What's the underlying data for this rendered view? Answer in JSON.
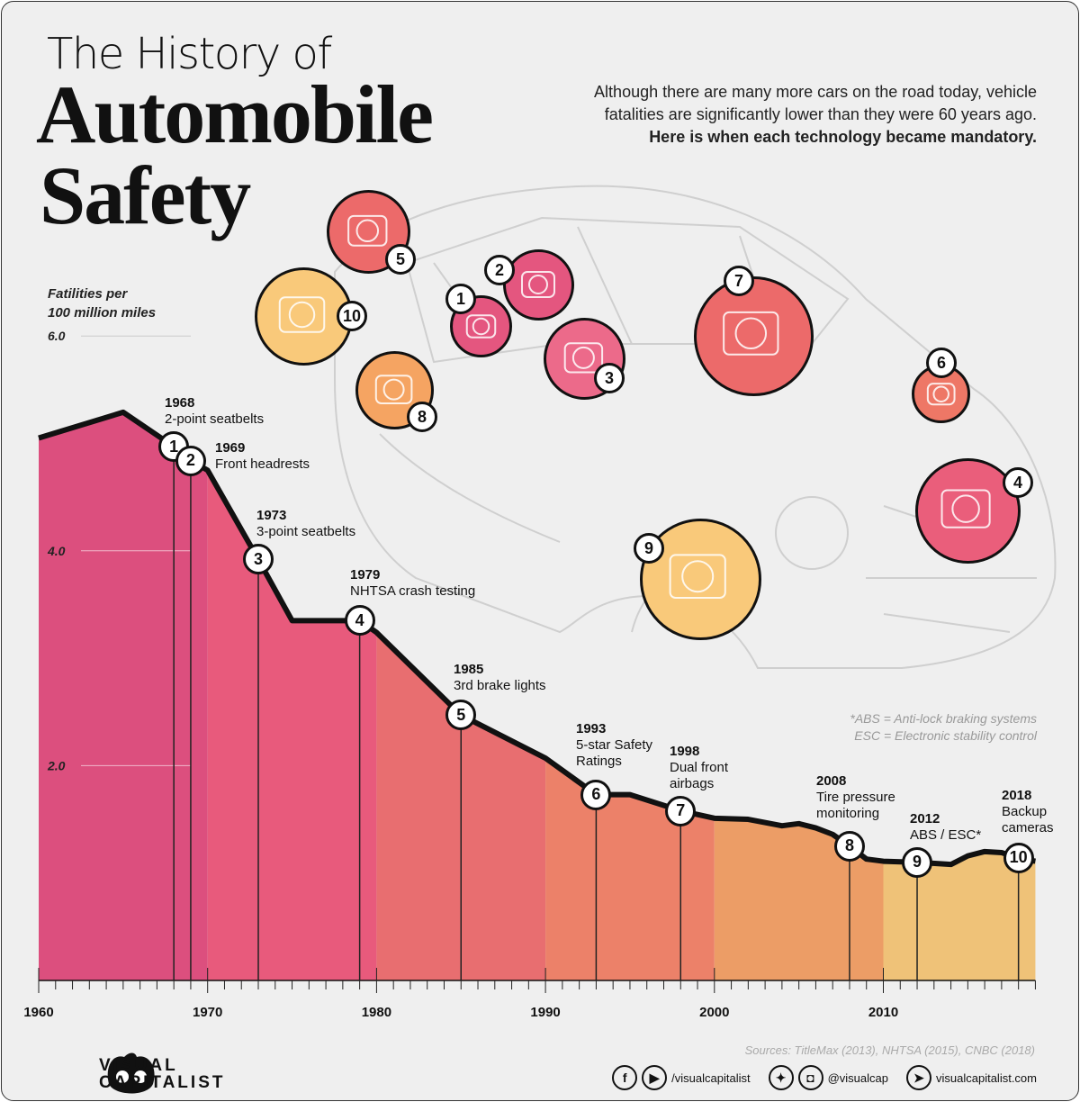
{
  "header": {
    "title_small": "The History of",
    "title_line1": "Automobile",
    "title_line2": "Safety",
    "intro": "Although there are many more cars on the road today, vehicle fatalities are significantly lower than they were 60 years ago.",
    "intro_bold": "Here  is when each technology became mandatory."
  },
  "footnote": {
    "line1": "*ABS = Anti-lock braking systems",
    "line2": "ESC = Electronic stability control"
  },
  "chart_data": {
    "type": "area",
    "ylabel": "Fatilities per\n100 million miles",
    "ylim": [
      0,
      6.0
    ],
    "xlim": [
      1960,
      2019
    ],
    "yticks": [
      "2.0",
      "4.0",
      "6.0"
    ],
    "xticks": [
      "1960",
      "1970",
      "1980",
      "1990",
      "2000",
      "2010"
    ],
    "grid": false,
    "x": [
      1960,
      1965,
      1968,
      1969,
      1970,
      1973,
      1975,
      1979,
      1980,
      1985,
      1990,
      1993,
      1995,
      1998,
      2000,
      2002,
      2004,
      2005,
      2006,
      2007,
      2008,
      2009,
      2010,
      2012,
      2014,
      2015,
      2016,
      2017,
      2018,
      2019
    ],
    "y": [
      5.05,
      5.29,
      4.97,
      4.84,
      4.75,
      3.92,
      3.35,
      3.35,
      3.24,
      2.47,
      2.07,
      1.73,
      1.73,
      1.58,
      1.51,
      1.5,
      1.44,
      1.46,
      1.42,
      1.36,
      1.25,
      1.13,
      1.11,
      1.1,
      1.08,
      1.16,
      1.2,
      1.19,
      1.14,
      1.11
    ],
    "decade_colors": [
      "#dc4f7e",
      "#e85a7c",
      "#e86e70",
      "#ec8169",
      "#ec9d66",
      "#efc278"
    ],
    "milestones": [
      {
        "num": "1",
        "year": "1968",
        "label": "2-point seatbelts"
      },
      {
        "num": "2",
        "year": "1969",
        "label": "Front headrests"
      },
      {
        "num": "3",
        "year": "1973",
        "label": "3-point seatbelts"
      },
      {
        "num": "4",
        "year": "1979",
        "label": "NHTSA crash testing"
      },
      {
        "num": "5",
        "year": "1985",
        "label": "3rd brake lights"
      },
      {
        "num": "6",
        "year": "1993",
        "label": "5-star Safety\nRatings"
      },
      {
        "num": "7",
        "year": "1998",
        "label": "Dual front\nairbags"
      },
      {
        "num": "8",
        "year": "2008",
        "label": "Tire pressure\nmonitoring"
      },
      {
        "num": "9",
        "year": "2012",
        "label": "ABS / ESC*"
      },
      {
        "num": "10",
        "year": "2018",
        "label": "Backup\ncameras"
      }
    ]
  },
  "icons": [
    {
      "num": "5",
      "name": "brake-light-icon",
      "color": "#ec6a6a"
    },
    {
      "num": "10",
      "name": "backup-camera-icon",
      "color": "#f9c97a"
    },
    {
      "num": "8",
      "name": "tire-pressure-icon",
      "color": "#f5a462"
    },
    {
      "num": "1",
      "name": "two-point-seatbelt-icon",
      "color": "#e4567f"
    },
    {
      "num": "2",
      "name": "headrest-icon",
      "color": "#e4567f"
    },
    {
      "num": "3",
      "name": "three-point-seatbelt-icon",
      "color": "#ec6a8a"
    },
    {
      "num": "7",
      "name": "airbag-icon",
      "color": "#ec6a6a"
    },
    {
      "num": "6",
      "name": "star-rating-icon",
      "color": "#ee7766"
    },
    {
      "num": "4",
      "name": "crash-test-icon",
      "color": "#ea5e7b"
    },
    {
      "num": "9",
      "name": "brake-disc-icon",
      "color": "#f9c97a"
    }
  ],
  "footer": {
    "sources": "Sources: TitleMax (2013), NHTSA (2015), CNBC (2018)",
    "logo_line1": "VISUAL",
    "logo_line2": "CAPITALIST",
    "facebook_youtube_handle": "/visualcapitalist",
    "twitter_instagram_handle": "@visualcap",
    "website": "visualcapitalist.com"
  }
}
